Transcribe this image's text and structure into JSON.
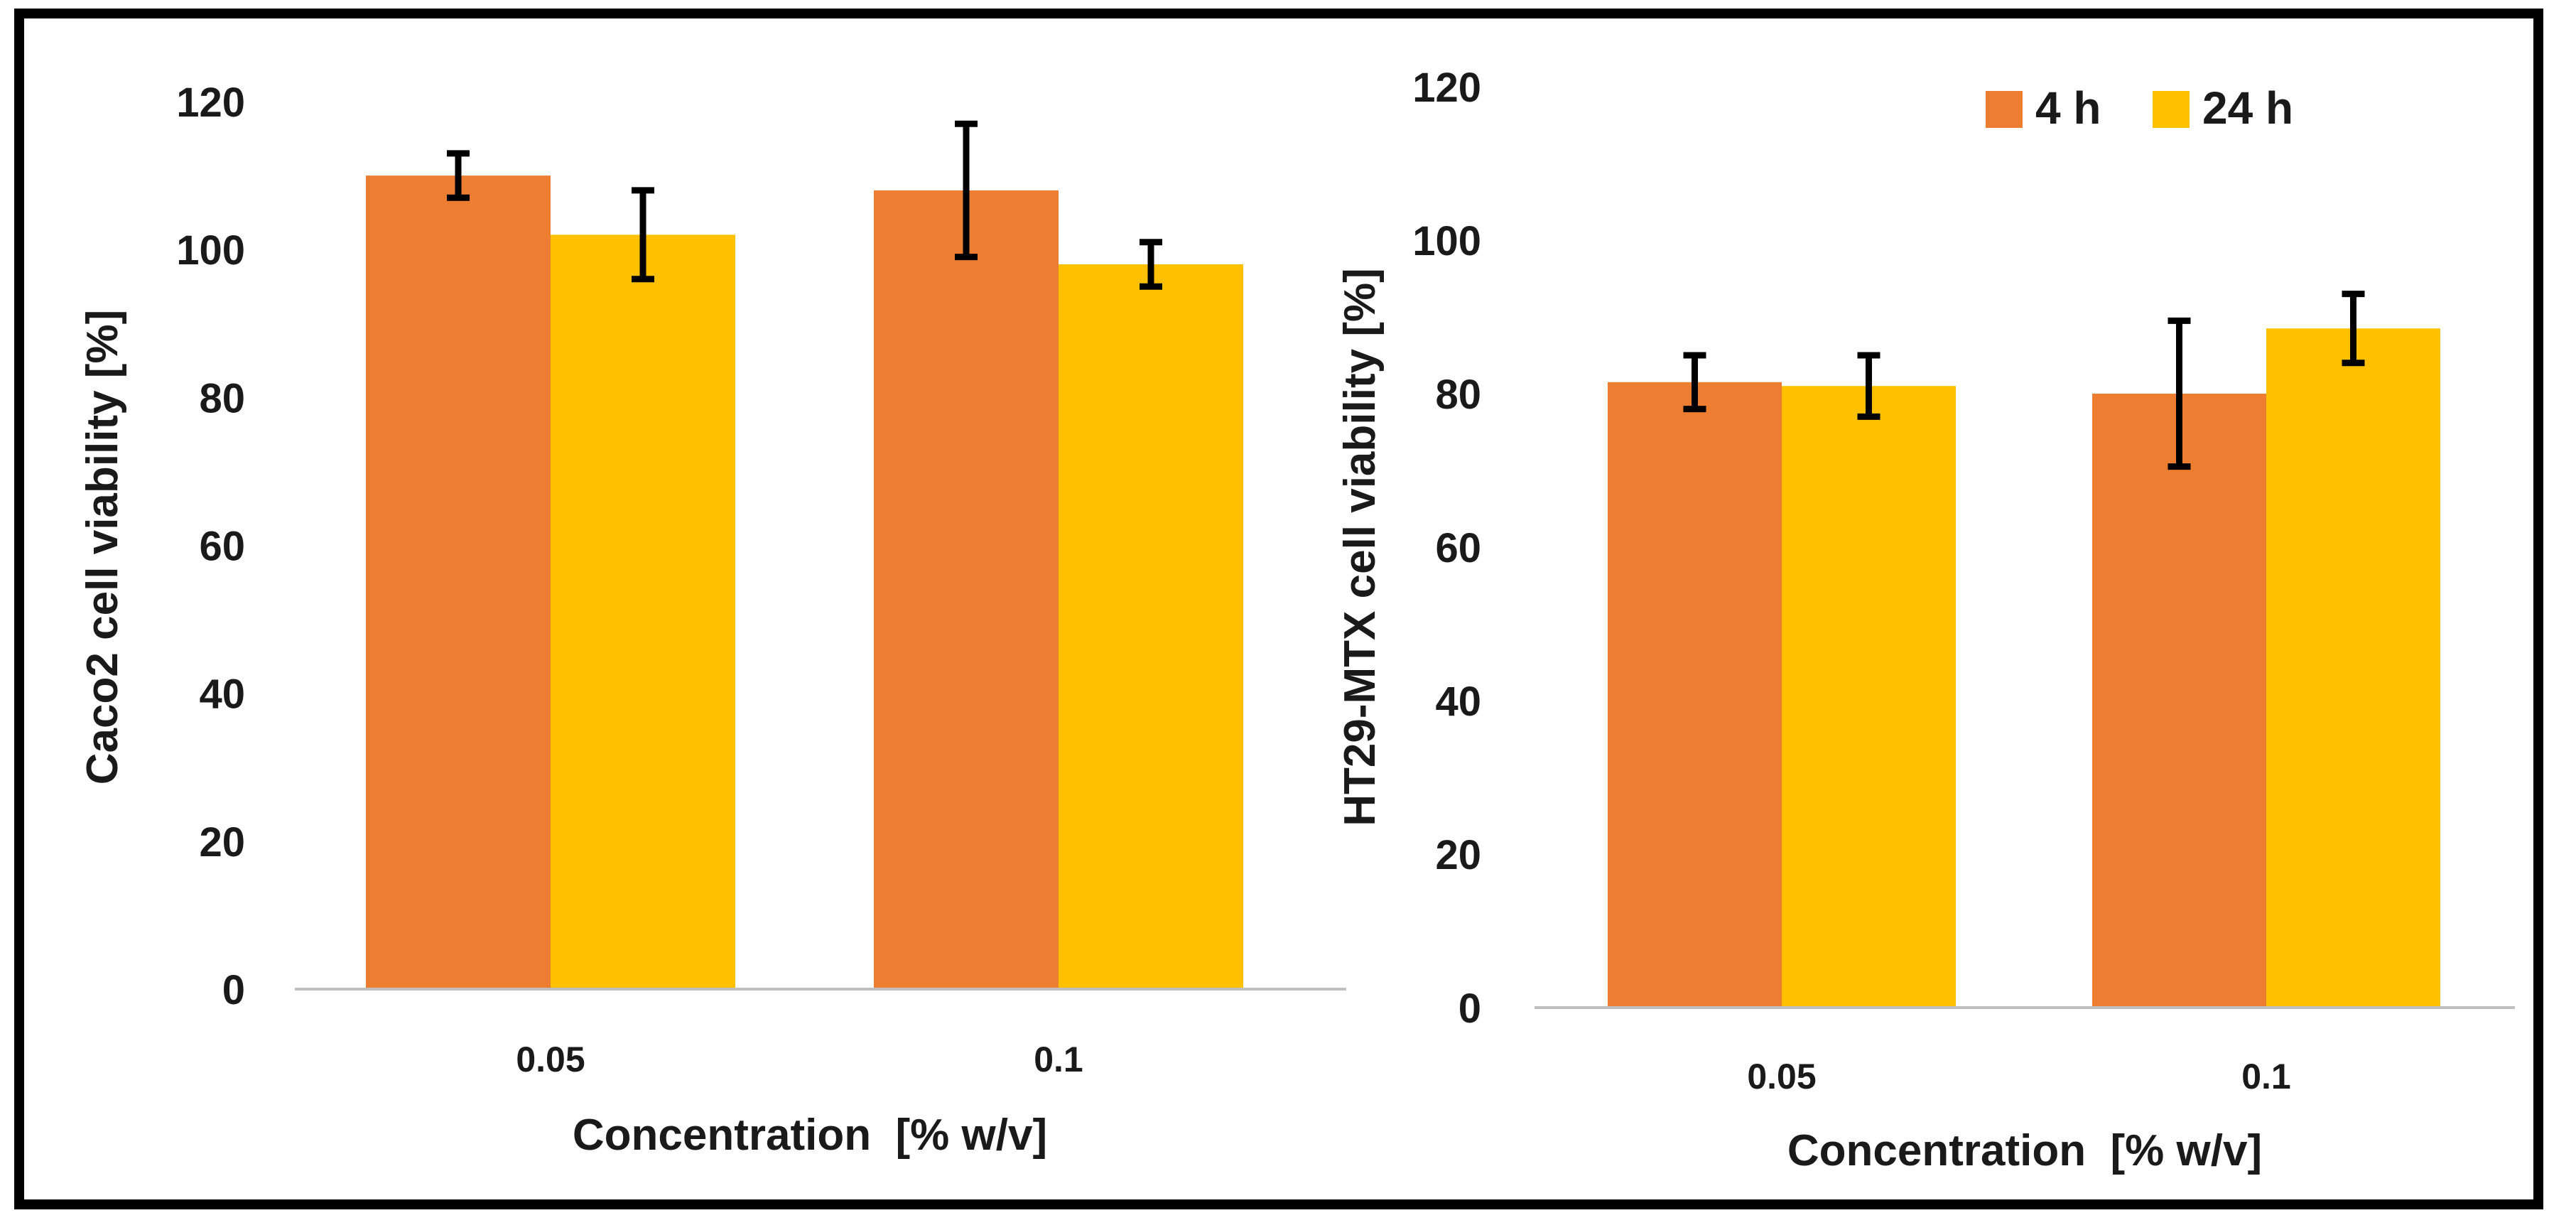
{
  "legend": {
    "series_4h": "4 h",
    "series_24h": "24 h"
  },
  "colors": {
    "series_4h": "#ED7D31",
    "series_24h": "#FFC000",
    "axis": "#BFBFBF",
    "errorbar": "#000000",
    "text": "#1a1a1a"
  },
  "chart_data": [
    {
      "type": "bar",
      "title": "",
      "xlabel": "Concentration  [% w/v]",
      "ylabel": "Caco2 cell viability [%]",
      "categories": [
        "0.05",
        "0.1"
      ],
      "ylim": [
        0,
        120
      ],
      "yticks": [
        0,
        20,
        40,
        60,
        80,
        100,
        120
      ],
      "series": [
        {
          "name": "4 h",
          "values": [
            110,
            108
          ],
          "errors": [
            3,
            9
          ]
        },
        {
          "name": "24 h",
          "values": [
            102,
            98
          ],
          "errors": [
            6,
            3
          ]
        }
      ]
    },
    {
      "type": "bar",
      "title": "",
      "xlabel": "Concentration  [% w/v]",
      "ylabel": "HT29-MTX cell viability [%]",
      "categories": [
        "0.05",
        "0.1"
      ],
      "ylim": [
        0,
        120
      ],
      "yticks": [
        0,
        20,
        40,
        60,
        80,
        100,
        120
      ],
      "legend_position": "top-right",
      "series": [
        {
          "name": "4 h",
          "values": [
            81.5,
            80
          ],
          "errors": [
            3.5,
            9.5
          ]
        },
        {
          "name": "24 h",
          "values": [
            81,
            88.5
          ],
          "errors": [
            4,
            4.5
          ]
        }
      ]
    }
  ]
}
